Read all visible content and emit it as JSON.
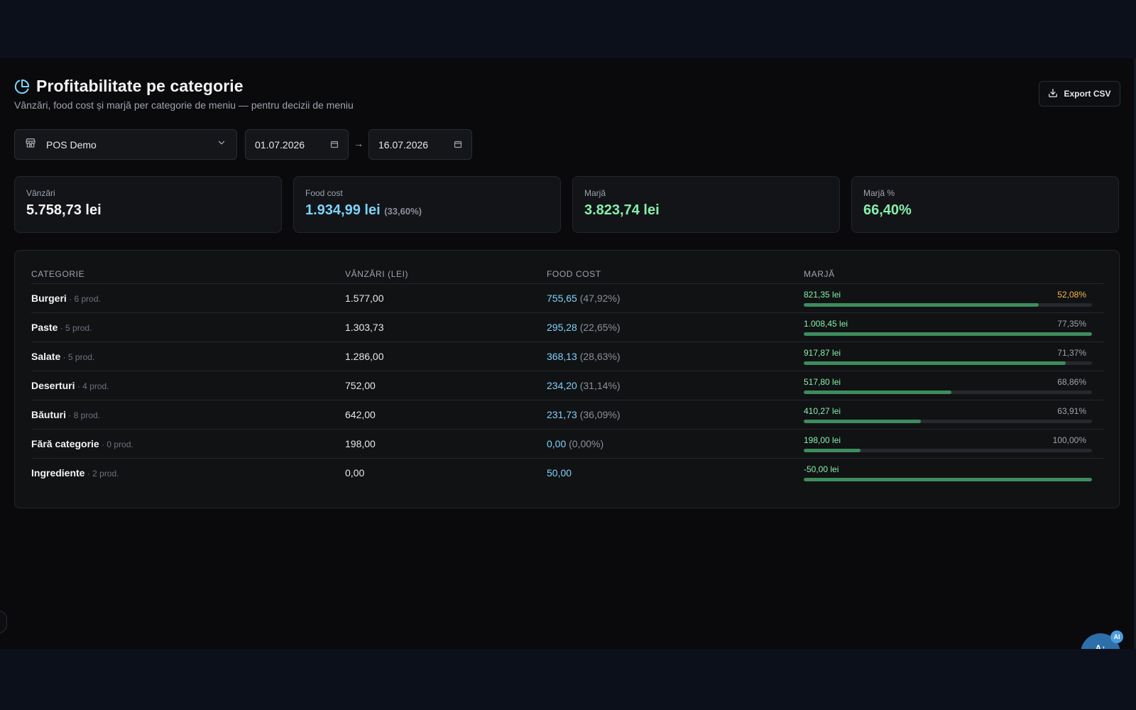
{
  "header": {
    "title": "Profitabilitate pe categorie",
    "subtitle": "Vânzări, food cost și marjă per categorie de meniu — pentru decizii de meniu",
    "export_label": "Export CSV"
  },
  "filters": {
    "location": "POS Demo",
    "date_from": "01.07.2026",
    "date_to": "16.07.2026",
    "arrow": "→"
  },
  "kpis": {
    "sales": {
      "label": "Vânzări",
      "value": "5.758,73 lei"
    },
    "food_cost": {
      "label": "Food cost",
      "value": "1.934,99 lei",
      "percent": "(33,60%)"
    },
    "margin": {
      "label": "Marjă",
      "value": "3.823,74 lei"
    },
    "margin_pct": {
      "label": "Marjă %",
      "value": "66,40%"
    }
  },
  "table": {
    "headers": {
      "category": "CATEGORIE",
      "sales": "VÂNZĂRI (LEI)",
      "food_cost": "FOOD COST",
      "margin": "MARJĂ"
    },
    "rows": [
      {
        "category": "Burgeri",
        "products": " · 6 prod.",
        "sales": "1.577,00",
        "food_cost": "755,65",
        "food_cost_pct": " (47,92%)",
        "margin": "821,35 lei",
        "margin_pct": "52,08%",
        "bar": 0.815
      },
      {
        "category": "Paste",
        "products": " · 5 prod.",
        "sales": "1.303,73",
        "food_cost": "295,28",
        "food_cost_pct": " (22,65%)",
        "margin": "1.008,45 lei",
        "margin_pct": "77,35%",
        "bar": 1.0
      },
      {
        "category": "Salate",
        "products": " · 5 prod.",
        "sales": "1.286,00",
        "food_cost": "368,13",
        "food_cost_pct": " (28,63%)",
        "margin": "917,87 lei",
        "margin_pct": "71,37%",
        "bar": 0.91
      },
      {
        "category": "Deserturi",
        "products": " · 4 prod.",
        "sales": "752,00",
        "food_cost": "234,20",
        "food_cost_pct": " (31,14%)",
        "margin": "517,80 lei",
        "margin_pct": "68,86%",
        "bar": 0.513
      },
      {
        "category": "Băuturi",
        "products": " · 8 prod.",
        "sales": "642,00",
        "food_cost": "231,73",
        "food_cost_pct": " (36,09%)",
        "margin": "410,27 lei",
        "margin_pct": "63,91%",
        "bar": 0.407
      },
      {
        "category": "Fără categorie",
        "products": " · 0 prod.",
        "sales": "198,00",
        "food_cost": "0,00",
        "food_cost_pct": " (0,00%)",
        "margin": "198,00 lei",
        "margin_pct": "100,00%",
        "bar": 0.196
      },
      {
        "category": "Ingrediente",
        "products": " · 2 prod.",
        "sales": "0,00",
        "food_cost": "50,00",
        "food_cost_pct": "",
        "margin": "-50,00 lei",
        "margin_pct": "",
        "bar": 1.0
      }
    ]
  },
  "colors": {
    "accent": "#7dd3fc",
    "margin_green": "#86efac",
    "warning": "#f5b84a",
    "bar_fill": "#3e8c5e"
  },
  "assistant": {
    "label": "A↑",
    "badge": "AI"
  }
}
